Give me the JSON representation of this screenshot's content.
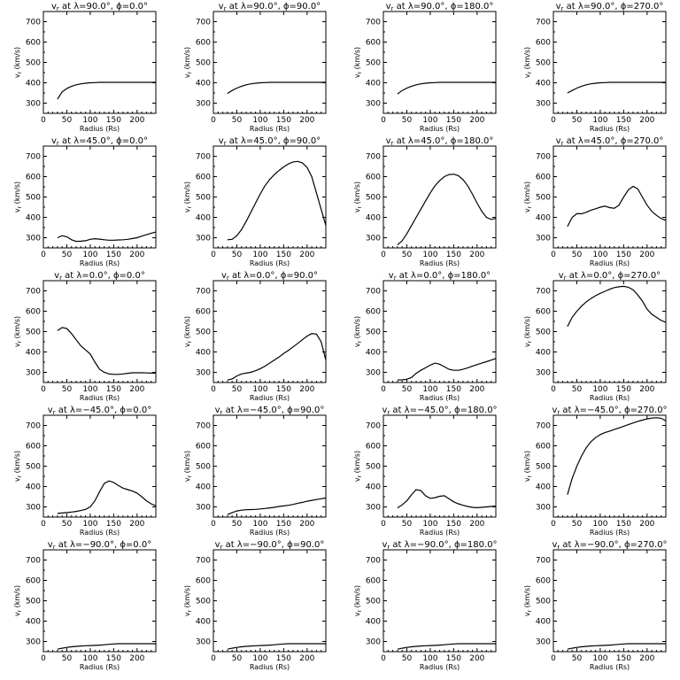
{
  "chart_data": [
    {
      "type": "line",
      "title": "v_r at λ=90.0°, ϕ=0.0°",
      "xlabel": "Radius (Rs)",
      "ylabel": "v_r (km/s)",
      "xlim": [
        0,
        240
      ],
      "ylim": [
        250,
        750
      ],
      "x": [
        30,
        40,
        50,
        60,
        70,
        80,
        90,
        100,
        110,
        120,
        130,
        140,
        150,
        160,
        170,
        180,
        190,
        200,
        210,
        220,
        230,
        240
      ],
      "y": [
        320,
        355,
        372,
        383,
        390,
        395,
        398,
        400,
        401,
        402,
        402,
        402,
        402,
        402,
        402,
        402,
        402,
        402,
        402,
        402,
        402,
        402
      ]
    },
    {
      "type": "line",
      "title": "v_r at λ=90.0°, ϕ=90.0°",
      "xlabel": "Radius (Rs)",
      "ylabel": "v_r (km/s)",
      "xlim": [
        0,
        240
      ],
      "ylim": [
        250,
        750
      ],
      "x": [
        30,
        40,
        50,
        60,
        70,
        80,
        90,
        100,
        110,
        120,
        130,
        140,
        150,
        160,
        170,
        180,
        190,
        200,
        210,
        220,
        230,
        240
      ],
      "y": [
        348,
        362,
        374,
        383,
        390,
        395,
        398,
        400,
        401,
        402,
        402,
        402,
        402,
        402,
        402,
        402,
        402,
        402,
        402,
        402,
        402,
        402
      ]
    },
    {
      "type": "line",
      "title": "v_r at λ=90.0°, ϕ=180.0°",
      "xlabel": "Radius (Rs)",
      "ylabel": "v_r (km/s)",
      "xlim": [
        0,
        240
      ],
      "ylim": [
        250,
        750
      ],
      "x": [
        30,
        40,
        50,
        60,
        70,
        80,
        90,
        100,
        110,
        120,
        130,
        140,
        150,
        160,
        170,
        180,
        190,
        200,
        210,
        220,
        230,
        240
      ],
      "y": [
        345,
        362,
        374,
        383,
        390,
        395,
        398,
        400,
        401,
        402,
        402,
        402,
        402,
        402,
        402,
        402,
        402,
        402,
        402,
        402,
        402,
        402
      ]
    },
    {
      "type": "line",
      "title": "v_r at λ=90.0°, ϕ=270.0°",
      "xlabel": "Radius (Rs)",
      "ylabel": "v_r (km/s)",
      "xlim": [
        0,
        240
      ],
      "ylim": [
        250,
        750
      ],
      "x": [
        30,
        40,
        50,
        60,
        70,
        80,
        90,
        100,
        110,
        120,
        130,
        140,
        150,
        160,
        170,
        180,
        190,
        200,
        210,
        220,
        230,
        240
      ],
      "y": [
        350,
        362,
        374,
        383,
        390,
        395,
        398,
        400,
        401,
        402,
        402,
        402,
        402,
        402,
        402,
        402,
        402,
        402,
        402,
        402,
        402,
        402
      ]
    },
    {
      "type": "line",
      "title": "v_r at λ=45.0°, ϕ=0.0°",
      "xlabel": "Radius (Rs)",
      "ylabel": "v_r (km/s)",
      "xlim": [
        0,
        240
      ],
      "ylim": [
        250,
        750
      ],
      "x": [
        30,
        40,
        50,
        60,
        70,
        80,
        90,
        100,
        110,
        120,
        130,
        140,
        150,
        160,
        170,
        180,
        190,
        200,
        210,
        220,
        230,
        240
      ],
      "y": [
        300,
        310,
        305,
        290,
        282,
        283,
        285,
        292,
        295,
        293,
        290,
        288,
        288,
        289,
        290,
        292,
        296,
        300,
        308,
        315,
        322,
        328
      ]
    },
    {
      "type": "line",
      "title": "v_r at λ=45.0°, ϕ=90.0°",
      "xlabel": "Radius (Rs)",
      "ylabel": "v_r (km/s)",
      "xlim": [
        0,
        240
      ],
      "ylim": [
        250,
        750
      ],
      "x": [
        30,
        40,
        50,
        60,
        70,
        80,
        90,
        100,
        110,
        120,
        130,
        140,
        150,
        160,
        170,
        180,
        190,
        200,
        210,
        220,
        230,
        240
      ],
      "y": [
        290,
        292,
        310,
        340,
        380,
        425,
        470,
        515,
        555,
        585,
        610,
        630,
        648,
        662,
        672,
        675,
        668,
        645,
        600,
        520,
        440,
        360
      ]
    },
    {
      "type": "line",
      "title": "v_r at λ=45.0°, ϕ=180.0°",
      "xlabel": "Radius (Rs)",
      "ylabel": "v_r (km/s)",
      "xlim": [
        0,
        240
      ],
      "ylim": [
        250,
        750
      ],
      "x": [
        30,
        40,
        50,
        60,
        70,
        80,
        90,
        100,
        110,
        120,
        130,
        140,
        150,
        160,
        170,
        180,
        190,
        200,
        210,
        220,
        230,
        240
      ],
      "y": [
        265,
        285,
        320,
        360,
        400,
        440,
        480,
        520,
        555,
        580,
        600,
        610,
        612,
        605,
        585,
        555,
        515,
        470,
        430,
        400,
        390,
        395
      ]
    },
    {
      "type": "line",
      "title": "v_r at λ=45.0°, ϕ=270.0°",
      "xlabel": "Radius (Rs)",
      "ylabel": "v_r (km/s)",
      "xlim": [
        0,
        240
      ],
      "ylim": [
        250,
        750
      ],
      "x": [
        30,
        40,
        50,
        60,
        70,
        80,
        90,
        100,
        110,
        120,
        130,
        140,
        150,
        160,
        170,
        180,
        190,
        200,
        210,
        220,
        230,
        240
      ],
      "y": [
        355,
        400,
        418,
        418,
        425,
        435,
        442,
        450,
        455,
        448,
        445,
        460,
        500,
        535,
        552,
        540,
        500,
        460,
        430,
        410,
        395,
        385
      ]
    },
    {
      "type": "line",
      "title": "v_r at λ=0.0°, ϕ=0.0°",
      "xlabel": "Radius (Rs)",
      "ylabel": "v_r (km/s)",
      "xlim": [
        0,
        240
      ],
      "ylim": [
        250,
        750
      ],
      "x": [
        30,
        40,
        50,
        60,
        70,
        80,
        90,
        100,
        110,
        120,
        130,
        140,
        150,
        160,
        170,
        180,
        190,
        200,
        210,
        220,
        230,
        240
      ],
      "y": [
        505,
        520,
        515,
        490,
        460,
        430,
        410,
        390,
        350,
        315,
        300,
        292,
        290,
        290,
        292,
        295,
        298,
        298,
        298,
        297,
        296,
        296
      ]
    },
    {
      "type": "line",
      "title": "v_r at λ=0.0°, ϕ=90.0°",
      "xlabel": "Radius (Rs)",
      "ylabel": "v_r (km/s)",
      "xlim": [
        0,
        240
      ],
      "ylim": [
        250,
        750
      ],
      "x": [
        30,
        40,
        50,
        60,
        70,
        80,
        90,
        100,
        110,
        120,
        130,
        140,
        150,
        160,
        170,
        180,
        190,
        200,
        210,
        220,
        230,
        240
      ],
      "y": [
        262,
        268,
        282,
        292,
        296,
        300,
        308,
        318,
        330,
        345,
        360,
        375,
        392,
        408,
        425,
        442,
        460,
        478,
        490,
        488,
        450,
        360
      ]
    },
    {
      "type": "line",
      "title": "v_r at λ=0.0°, ϕ=180.0°",
      "xlabel": "Radius (Rs)",
      "ylabel": "v_r (km/s)",
      "xlim": [
        0,
        240
      ],
      "ylim": [
        250,
        750
      ],
      "x": [
        30,
        40,
        50,
        60,
        70,
        80,
        90,
        100,
        110,
        120,
        130,
        140,
        150,
        160,
        170,
        180,
        190,
        200,
        210,
        220,
        230,
        240
      ],
      "y": [
        262,
        263,
        266,
        275,
        295,
        310,
        322,
        335,
        345,
        340,
        328,
        315,
        310,
        310,
        315,
        322,
        330,
        338,
        345,
        352,
        360,
        368
      ]
    },
    {
      "type": "line",
      "title": "v_r at λ=0.0°, ϕ=270.0°",
      "xlabel": "Radius (Rs)",
      "ylabel": "v_r (km/s)",
      "xlim": [
        0,
        240
      ],
      "ylim": [
        250,
        750
      ],
      "x": [
        30,
        40,
        50,
        60,
        70,
        80,
        90,
        100,
        110,
        120,
        130,
        140,
        150,
        160,
        170,
        180,
        190,
        200,
        210,
        220,
        230,
        240
      ],
      "y": [
        525,
        570,
        600,
        625,
        645,
        662,
        676,
        688,
        698,
        708,
        716,
        720,
        722,
        718,
        705,
        680,
        650,
        610,
        585,
        570,
        555,
        545
      ]
    },
    {
      "type": "line",
      "title": "v_r at λ=−45.0°, ϕ=0.0°",
      "xlabel": "Radius (Rs)",
      "ylabel": "v_r (km/s)",
      "xlim": [
        0,
        240
      ],
      "ylim": [
        250,
        750
      ],
      "x": [
        30,
        40,
        50,
        60,
        70,
        80,
        90,
        100,
        110,
        120,
        130,
        140,
        150,
        160,
        170,
        180,
        190,
        200,
        210,
        220,
        230,
        240
      ],
      "y": [
        268,
        270,
        272,
        275,
        278,
        282,
        288,
        300,
        330,
        375,
        415,
        428,
        420,
        405,
        392,
        385,
        378,
        368,
        350,
        330,
        315,
        305
      ]
    },
    {
      "type": "line",
      "title": "v_r at λ=−45.0°, ϕ=90.0°",
      "xlabel": "Radius (Rs)",
      "ylabel": "v_r (km/s)",
      "xlim": [
        0,
        240
      ],
      "ylim": [
        250,
        750
      ],
      "x": [
        30,
        40,
        50,
        60,
        70,
        80,
        90,
        100,
        110,
        120,
        130,
        140,
        150,
        160,
        170,
        180,
        190,
        200,
        210,
        220,
        230,
        240
      ],
      "y": [
        262,
        272,
        280,
        284,
        286,
        287,
        288,
        290,
        292,
        295,
        298,
        302,
        305,
        308,
        312,
        318,
        322,
        328,
        332,
        336,
        340,
        344
      ]
    },
    {
      "type": "line",
      "title": "v_r at λ=−45.0°, ϕ=180.0°",
      "xlabel": "Radius (Rs)",
      "ylabel": "v_r (km/s)",
      "xlim": [
        0,
        240
      ],
      "ylim": [
        250,
        750
      ],
      "x": [
        30,
        40,
        50,
        60,
        70,
        80,
        90,
        100,
        110,
        120,
        130,
        140,
        150,
        160,
        170,
        180,
        190,
        200,
        210,
        220,
        230,
        240
      ],
      "y": [
        295,
        310,
        330,
        360,
        385,
        380,
        355,
        342,
        345,
        352,
        355,
        340,
        325,
        315,
        308,
        302,
        298,
        296,
        298,
        300,
        302,
        304
      ]
    },
    {
      "type": "line",
      "title": "v_r at λ=−45.0°, ϕ=270.0°",
      "xlabel": "Radius (Rs)",
      "ylabel": "v_r (km/s)",
      "xlim": [
        0,
        240
      ],
      "ylim": [
        250,
        750
      ],
      "x": [
        30,
        40,
        50,
        60,
        70,
        80,
        90,
        100,
        110,
        120,
        130,
        140,
        150,
        160,
        170,
        180,
        190,
        200,
        210,
        220,
        230,
        240
      ],
      "y": [
        360,
        440,
        500,
        550,
        590,
        620,
        640,
        655,
        665,
        672,
        680,
        688,
        696,
        704,
        712,
        720,
        726,
        732,
        736,
        738,
        735,
        722
      ]
    },
    {
      "type": "line",
      "title": "v_r at λ=−90.0°, ϕ=0.0°",
      "xlabel": "Radius (Rs)",
      "ylabel": "v_r (km/s)",
      "xlim": [
        0,
        240
      ],
      "ylim": [
        250,
        750
      ],
      "x": [
        30,
        40,
        50,
        60,
        70,
        80,
        90,
        100,
        110,
        120,
        130,
        140,
        150,
        160,
        170,
        180,
        190,
        200,
        210,
        220,
        230,
        240
      ],
      "y": [
        262,
        267,
        271,
        274,
        276,
        278,
        279,
        280,
        281,
        282,
        284,
        286,
        288,
        289,
        289,
        289,
        289,
        289,
        289,
        289,
        289,
        289
      ]
    },
    {
      "type": "line",
      "title": "v_r at λ=−90.0°, ϕ=90.0°",
      "xlabel": "Radius (Rs)",
      "ylabel": "v_r (km/s)",
      "xlim": [
        0,
        240
      ],
      "ylim": [
        250,
        750
      ],
      "x": [
        30,
        40,
        50,
        60,
        70,
        80,
        90,
        100,
        110,
        120,
        130,
        140,
        150,
        160,
        170,
        180,
        190,
        200,
        210,
        220,
        230,
        240
      ],
      "y": [
        262,
        267,
        271,
        274,
        276,
        278,
        279,
        280,
        281,
        282,
        284,
        286,
        288,
        289,
        289,
        289,
        289,
        289,
        289,
        289,
        289,
        289
      ]
    },
    {
      "type": "line",
      "title": "v_r at λ=−90.0°, ϕ=180.0°",
      "xlabel": "Radius (Rs)",
      "ylabel": "v_r (km/s)",
      "xlim": [
        0,
        240
      ],
      "ylim": [
        250,
        750
      ],
      "x": [
        30,
        40,
        50,
        60,
        70,
        80,
        90,
        100,
        110,
        120,
        130,
        140,
        150,
        160,
        170,
        180,
        190,
        200,
        210,
        220,
        230,
        240
      ],
      "y": [
        262,
        267,
        271,
        274,
        276,
        278,
        279,
        280,
        281,
        282,
        284,
        286,
        288,
        289,
        289,
        289,
        289,
        289,
        289,
        289,
        289,
        289
      ]
    },
    {
      "type": "line",
      "title": "v_r at λ=−90.0°, ϕ=270.0°",
      "xlabel": "Radius (Rs)",
      "ylabel": "v_r (km/s)",
      "xlim": [
        0,
        240
      ],
      "ylim": [
        250,
        750
      ],
      "x": [
        30,
        40,
        50,
        60,
        70,
        80,
        90,
        100,
        110,
        120,
        130,
        140,
        150,
        160,
        170,
        180,
        190,
        200,
        210,
        220,
        230,
        240
      ],
      "y": [
        262,
        267,
        271,
        274,
        276,
        278,
        279,
        280,
        281,
        282,
        284,
        286,
        288,
        289,
        289,
        289,
        289,
        289,
        289,
        289,
        289,
        289
      ]
    }
  ],
  "axis": {
    "xticks": [
      "0",
      "50",
      "100",
      "150",
      "200"
    ],
    "yticks": [
      "300",
      "400",
      "500",
      "600",
      "700"
    ]
  }
}
